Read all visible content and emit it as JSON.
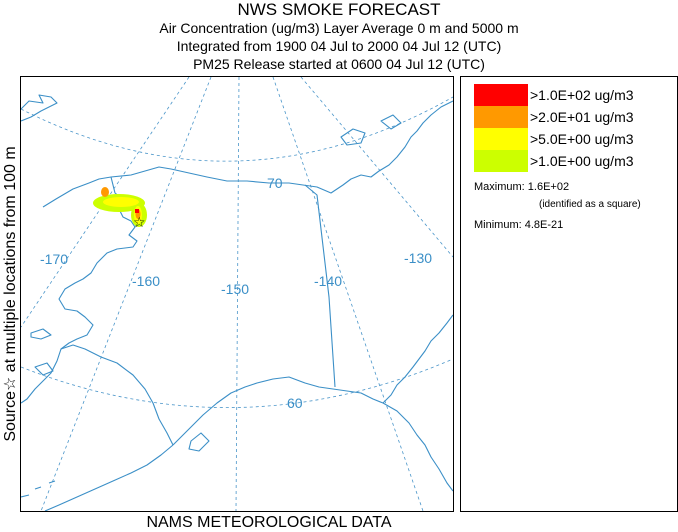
{
  "header": {
    "title": "NWS SMOKE FORECAST",
    "line1": "Air Concentration (ug/m3) Layer Average    0 m and  5000 m",
    "line2": "Integrated from 1900 04 Jul to 2000 04 Jul 12 (UTC)",
    "line3": "PM25 Release started at 0600 04 Jul 12 (UTC)"
  },
  "side_label": "Source☆ at multiple locations  from  100 m",
  "footer": "NAMS METEOROLOGICAL DATA",
  "map": {
    "grid_labels": {
      "lat70": "70",
      "lat60": "60",
      "lon170": "-170",
      "lon160": "-160",
      "lon150": "-150",
      "lon140": "-140",
      "lon130": "-130"
    },
    "colors": {
      "coast": "#3b8fc7",
      "grid": "#4a95c9",
      "label": "#3b8fc7"
    },
    "smoke_levels": [
      "#ccff00",
      "#ffff00",
      "#ff9900",
      "#ff0000"
    ]
  },
  "legend": {
    "items": [
      {
        "label": ">1.0E+02 ug/m3",
        "color": "#ff0000"
      },
      {
        "label": ">2.0E+01 ug/m3",
        "color": "#ff9900"
      },
      {
        "label": ">5.0E+00 ug/m3",
        "color": "#ffff00"
      },
      {
        "label": ">1.0E+00 ug/m3",
        "color": "#ccff00"
      }
    ],
    "maximum": "Maximum: 1.6E+02",
    "max_note": "(identified as a square)",
    "minimum": "Minimum: 4.8E-21"
  }
}
